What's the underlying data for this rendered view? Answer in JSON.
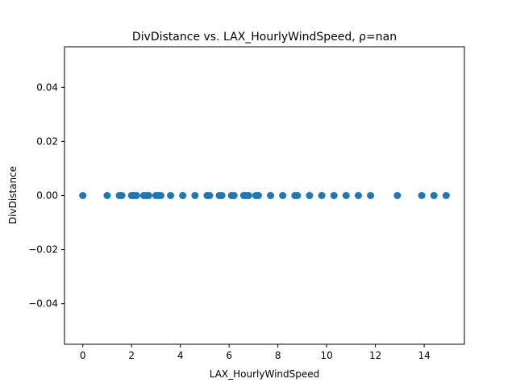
{
  "chart_data": {
    "type": "scatter",
    "title": "DivDistance vs. LAX_HourlyWindSpeed, ρ=nan",
    "xlabel": "LAX_HourlyWindSpeed",
    "ylabel": "DivDistance",
    "xlim": [
      -0.75,
      15.65
    ],
    "ylim": [
      -0.055,
      0.055
    ],
    "xticks": [
      0,
      2,
      4,
      6,
      8,
      10,
      12,
      14
    ],
    "xtick_labels": [
      "0",
      "2",
      "4",
      "6",
      "8",
      "10",
      "12",
      "14"
    ],
    "yticks": [
      -0.04,
      -0.02,
      0.0,
      0.02,
      0.04
    ],
    "ytick_labels": [
      "−0.04",
      "−0.02",
      "0.00",
      "0.02",
      "0.04"
    ],
    "grid": false,
    "marker_color": "#1f77b4",
    "series": [
      {
        "x": [
          0,
          1.0,
          1.5,
          1.6,
          2.0,
          2.1,
          2.2,
          2.5,
          2.6,
          2.7,
          3.0,
          3.1,
          3.2,
          3.6,
          4.1,
          4.6,
          5.1,
          5.2,
          5.6,
          5.7,
          6.1,
          6.2,
          6.6,
          6.7,
          6.8,
          7.1,
          7.2,
          7.7,
          8.2,
          8.7,
          8.8,
          9.3,
          9.8,
          10.3,
          10.8,
          11.3,
          11.8,
          12.9,
          13.9,
          14.4,
          14.9
        ],
        "y": [
          0,
          0,
          0,
          0,
          0,
          0,
          0,
          0,
          0,
          0,
          0,
          0,
          0,
          0,
          0,
          0,
          0,
          0,
          0,
          0,
          0,
          0,
          0,
          0,
          0,
          0,
          0,
          0,
          0,
          0,
          0,
          0,
          0,
          0,
          0,
          0,
          0,
          0,
          0,
          0,
          0
        ]
      }
    ]
  }
}
